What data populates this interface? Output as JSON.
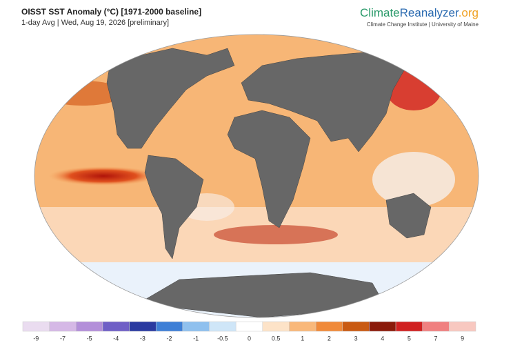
{
  "header": {
    "title": "OISST SST Anomaly (°C) [1971-2000 baseline]",
    "subtitle": "1-day Avg | Wed, Aug 19, 2026 [preliminary]",
    "brand": {
      "part1": "Climate",
      "part2": "Reanalyzer",
      "part3": ".org"
    },
    "affiliation": "Climate Change Institute | University of Maine"
  },
  "colorbar": {
    "ticks": [
      -9,
      -7,
      -5,
      -4,
      -3,
      -2,
      -1,
      -0.5,
      0,
      0.5,
      1,
      2,
      3,
      4,
      5,
      7,
      9
    ],
    "colors": [
      "#eadcf0",
      "#d5b8e6",
      "#b38fd9",
      "#6f5fc6",
      "#2a3aa0",
      "#3e7fd6",
      "#8fc0ee",
      "#cfe6f8",
      "#ffffff",
      "#fde3c8",
      "#f9b87a",
      "#f08a3a",
      "#c95a12",
      "#8b1a0a",
      "#d02020",
      "#f08080",
      "#f8c8c0"
    ]
  }
}
